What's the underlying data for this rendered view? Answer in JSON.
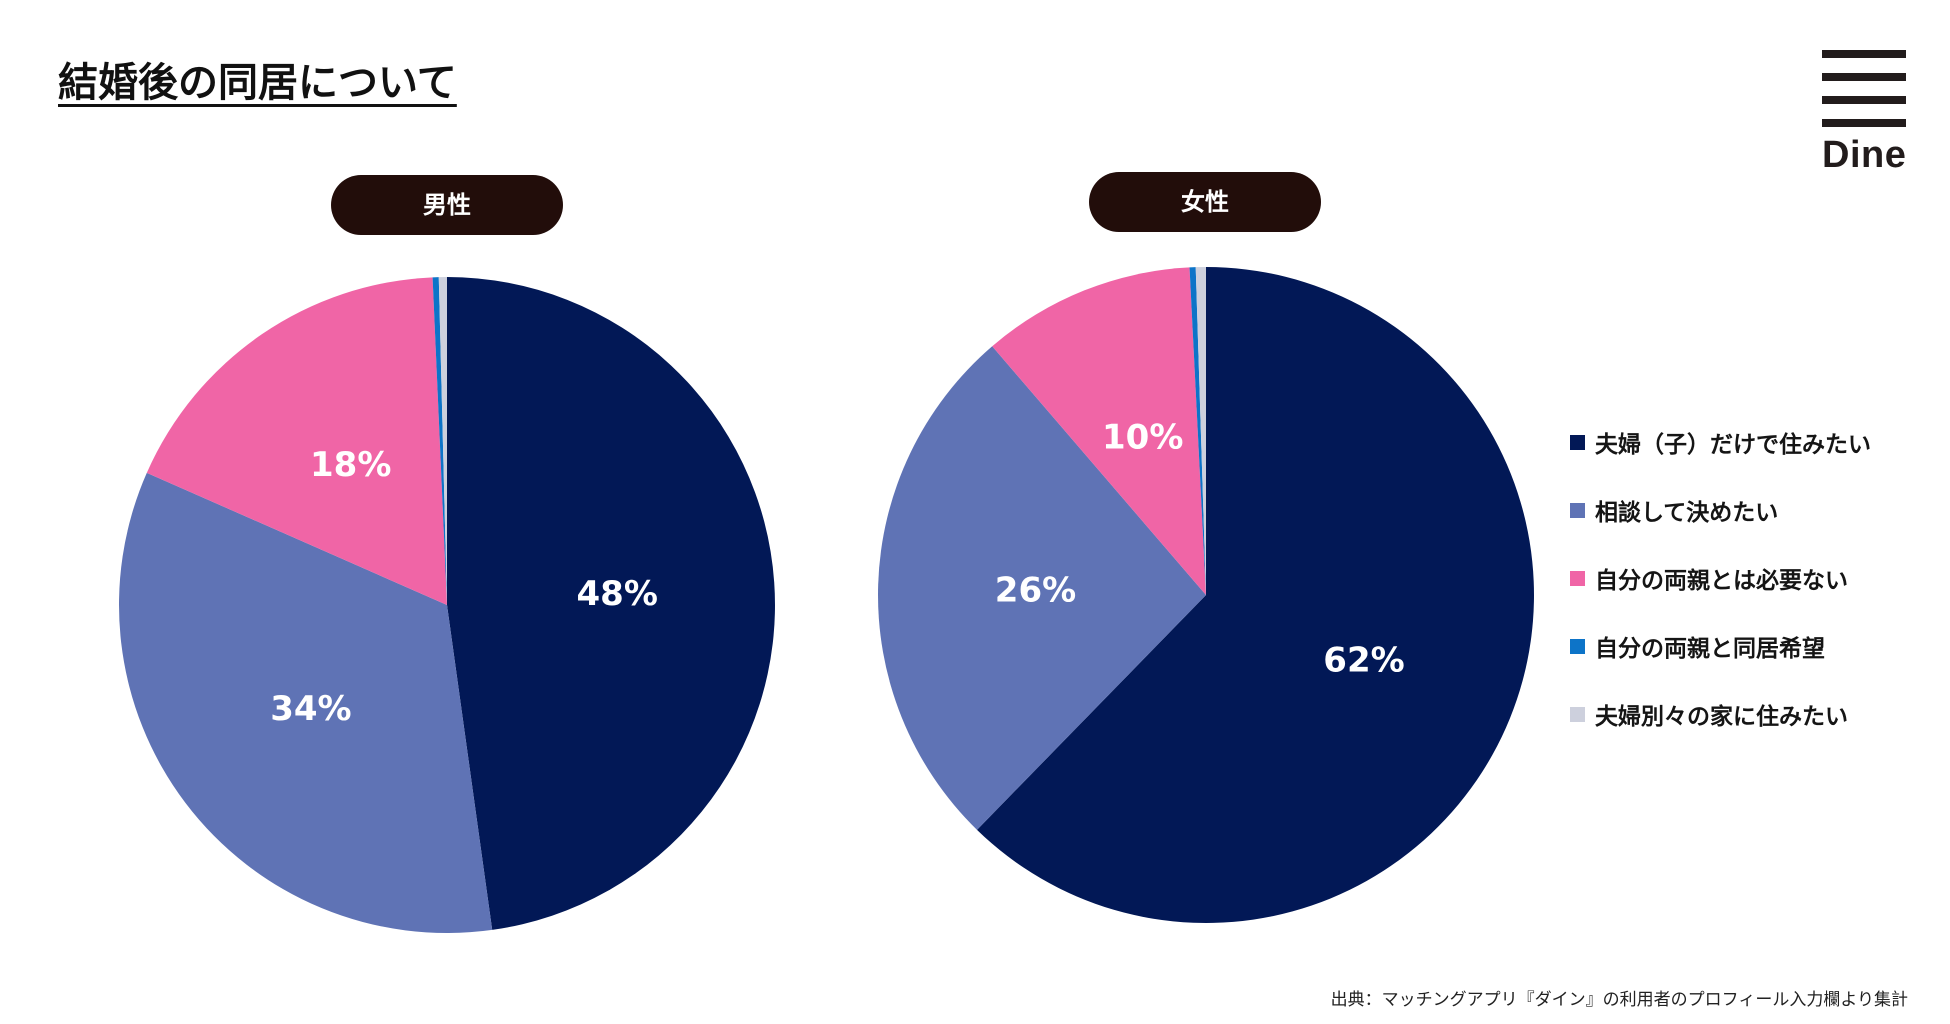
{
  "title": "結婚後の同居について",
  "logo": {
    "text": "Dine"
  },
  "chart_data": [
    {
      "type": "pie",
      "title": "男性",
      "series": [
        {
          "name": "夫婦（子）だけで住みたい",
          "value": 47.8,
          "label": "48%",
          "color": "#021856"
        },
        {
          "name": "相談して決めたい",
          "value": 33.8,
          "label": "34%",
          "color": "#5f73b5"
        },
        {
          "name": "自分の両親とは必要ない",
          "value": 17.7,
          "label": "18%",
          "color": "#f065a6"
        },
        {
          "name": "自分の両親と同居希望",
          "value": 0.3,
          "label": "",
          "color": "#0d74c8"
        },
        {
          "name": "夫婦別々の家に住みたい",
          "value": 0.4,
          "label": "",
          "color": "#cdd0dd"
        }
      ]
    },
    {
      "type": "pie",
      "title": "女性",
      "series": [
        {
          "name": "夫婦（子）だけで住みたい",
          "value": 62.3,
          "label": "62%",
          "color": "#021856"
        },
        {
          "name": "相談して決めたい",
          "value": 26.4,
          "label": "26%",
          "color": "#5f73b5"
        },
        {
          "name": "自分の両親とは必要ない",
          "value": 10.5,
          "label": "10%",
          "color": "#f065a6"
        },
        {
          "name": "自分の両親と同居希望",
          "value": 0.3,
          "label": "",
          "color": "#0d74c8"
        },
        {
          "name": "夫婦別々の家に住みたい",
          "value": 0.5,
          "label": "",
          "color": "#cdd0dd"
        }
      ]
    }
  ],
  "legend": {
    "placement": "right",
    "items": [
      {
        "label": "夫婦（子）だけで住みたい",
        "color": "#021856"
      },
      {
        "label": "相談して決めたい",
        "color": "#5f73b5"
      },
      {
        "label": "自分の両親とは必要ない",
        "color": "#f065a6"
      },
      {
        "label": "自分の両親と同居希望",
        "color": "#0d74c8"
      },
      {
        "label": "夫婦別々の家に住みたい",
        "color": "#cdd0dd"
      }
    ]
  },
  "source": "出典：マッチングアプリ『ダイン』の利用者のプロフィール入力欄より集計"
}
